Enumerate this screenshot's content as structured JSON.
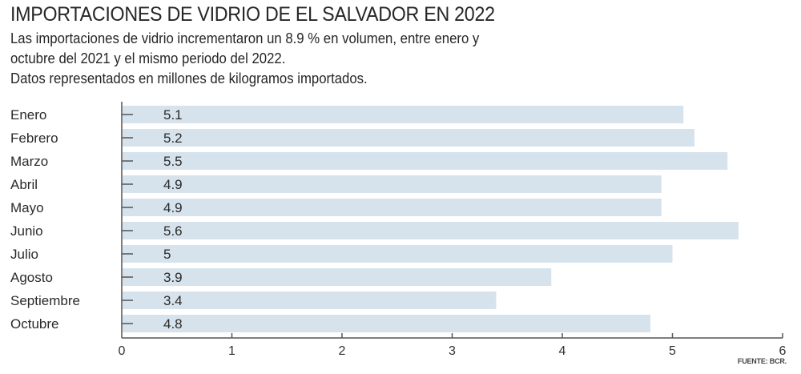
{
  "chart_data": {
    "type": "bar",
    "orientation": "horizontal",
    "title": "IMPORTACIONES DE VIDRIO DE EL SALVADOR EN 2022",
    "subtitle_lines": [
      "Las importaciones de vidrio incrementaron un 8.9 % en volumen, entre enero y",
      "octubre del 2021 y el mismo periodo del 2022.",
      "Datos representados en millones de kilogramos importados."
    ],
    "categories": [
      "Enero",
      "Febrero",
      "Marzo",
      "Abril",
      "Mayo",
      "Junio",
      "Julio",
      "Agosto",
      "Septiembre",
      "Octubre"
    ],
    "values": [
      5.1,
      5.2,
      5.5,
      4.9,
      4.9,
      5.6,
      5,
      3.9,
      3.4,
      4.8
    ],
    "value_labels": [
      "5.1",
      "5.2",
      "5.5",
      "4.9",
      "4.9",
      "5.6",
      "5",
      "3.9",
      "3.4",
      "4.8"
    ],
    "xlim": [
      0,
      6
    ],
    "x_ticks": [
      0,
      1,
      2,
      3,
      4,
      5,
      6
    ],
    "x_tick_labels": [
      "0",
      "1",
      "2",
      "3",
      "4",
      "5",
      "6"
    ],
    "xlabel": "",
    "ylabel": "",
    "grid": false,
    "source": "FUENTE: BCR.",
    "colors": {
      "bar": "#d6e3ed",
      "axis": "#555555",
      "text": "#2a2a2a"
    }
  }
}
